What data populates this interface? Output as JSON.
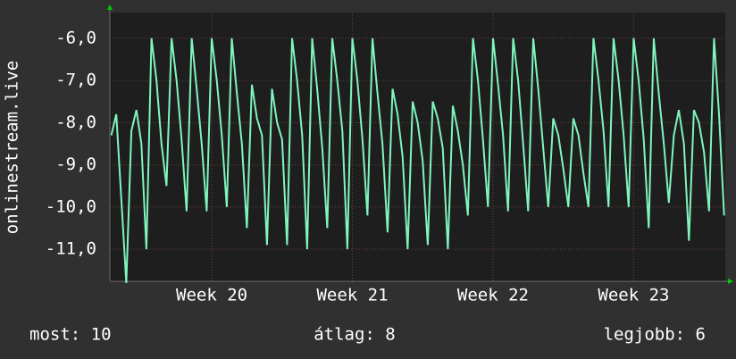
{
  "chart_data": {
    "type": "line",
    "y_label": "onlinestream.live",
    "x": [
      -5,
      -4.75,
      -4.5,
      -4.25,
      -4,
      -3.75,
      -3.5,
      -3.25,
      -3,
      -2.75,
      -2.5,
      -2.25,
      -2,
      -1.75,
      -1.5,
      -1.25,
      -1,
      -0.75,
      -0.5,
      -0.25,
      0,
      0.25,
      0.5,
      0.75,
      1,
      1.25,
      1.5,
      1.75,
      2,
      2.25,
      2.5,
      2.75,
      3,
      3.25,
      3.5,
      3.75,
      4,
      4.25,
      4.5,
      4.75,
      5,
      5.25,
      5.5,
      5.75,
      6,
      6.25,
      6.5,
      6.75,
      7,
      7.25,
      7.5,
      7.75,
      8,
      8.25,
      8.5,
      8.75,
      9,
      9.25,
      9.5,
      9.75,
      10,
      10.25,
      10.5,
      10.75,
      11,
      11.25,
      11.5,
      11.75,
      12,
      12.25,
      12.5,
      12.75,
      13,
      13.25,
      13.5,
      13.75,
      14,
      14.25,
      14.5,
      14.75,
      15,
      15.25,
      15.5,
      15.75,
      16,
      16.25,
      16.5,
      16.75,
      17,
      17.25,
      17.5,
      17.75,
      18,
      18.25,
      18.5,
      18.75,
      19,
      19.25,
      19.5,
      19.75,
      20,
      20.25,
      20.5,
      20.75,
      21,
      21.25,
      21.5,
      21.75,
      22,
      22.25,
      22.5,
      22.75,
      23,
      23.25,
      23.5,
      23.75,
      24,
      24.25,
      24.5,
      24.75,
      25,
      25.25,
      25.5
    ],
    "series": [
      {
        "name": "onlinestream.live",
        "color": "#7ff5bd",
        "values": [
          -8.3,
          -7.8,
          -9.8,
          -11.8,
          -8.2,
          -7.7,
          -8.5,
          -11.0,
          -6.0,
          -7.0,
          -8.5,
          -9.5,
          -6.0,
          -7.0,
          -8.4,
          -10.1,
          -6.0,
          -7.2,
          -8.5,
          -10.1,
          -6.0,
          -7.0,
          -8.3,
          -10.0,
          -6.0,
          -7.3,
          -8.5,
          -10.5,
          -7.1,
          -7.9,
          -8.3,
          -10.9,
          -7.2,
          -8.0,
          -8.4,
          -10.9,
          -6.0,
          -7.0,
          -8.3,
          -11.0,
          -6.0,
          -7.2,
          -8.6,
          -10.5,
          -6.0,
          -7.0,
          -8.2,
          -11.0,
          -6.0,
          -7.0,
          -8.4,
          -10.2,
          -6.0,
          -7.3,
          -8.5,
          -10.6,
          -7.2,
          -7.8,
          -8.8,
          -11.0,
          -7.5,
          -8.0,
          -8.9,
          -10.9,
          -7.5,
          -7.9,
          -8.6,
          -11.0,
          -7.6,
          -8.2,
          -9.0,
          -10.2,
          -6.0,
          -7.0,
          -8.4,
          -10.0,
          -6.0,
          -7.1,
          -8.3,
          -10.1,
          -6.0,
          -7.0,
          -8.5,
          -10.1,
          -6.0,
          -7.2,
          -8.6,
          -10.0,
          -7.9,
          -8.3,
          -9.1,
          -10.0,
          -7.9,
          -8.3,
          -9.2,
          -10.0,
          -6.0,
          -7.0,
          -8.2,
          -10.0,
          -6.0,
          -7.0,
          -8.3,
          -10.0,
          -6.0,
          -7.0,
          -8.4,
          -10.5,
          -6.0,
          -7.3,
          -8.5,
          -9.9,
          -8.3,
          -7.7,
          -8.5,
          -10.8,
          -7.7,
          -8.0,
          -8.7,
          -10.1,
          -6.0,
          -7.8,
          -10.2
        ]
      }
    ],
    "xlim": [
      -5.07,
      25.56
    ],
    "xticks": [
      {
        "value": 0,
        "label": "Week 20"
      },
      {
        "value": 7,
        "label": "Week 21"
      },
      {
        "value": 14,
        "label": "Week 22"
      },
      {
        "value": 21,
        "label": "Week 23"
      }
    ],
    "ylim": [
      -11.76,
      -5.39
    ],
    "yticks": [
      {
        "value": -6,
        "label": "-6,0"
      },
      {
        "value": -7,
        "label": "-7,0"
      },
      {
        "value": -8,
        "label": "-8,0"
      },
      {
        "value": -9,
        "label": "-9,0"
      },
      {
        "value": -10,
        "label": "-10,0"
      },
      {
        "value": -11,
        "label": "-11,0"
      }
    ],
    "grid": true,
    "footer": [
      "most: 10",
      "átlag: 8",
      "legjobb: 6"
    ]
  }
}
